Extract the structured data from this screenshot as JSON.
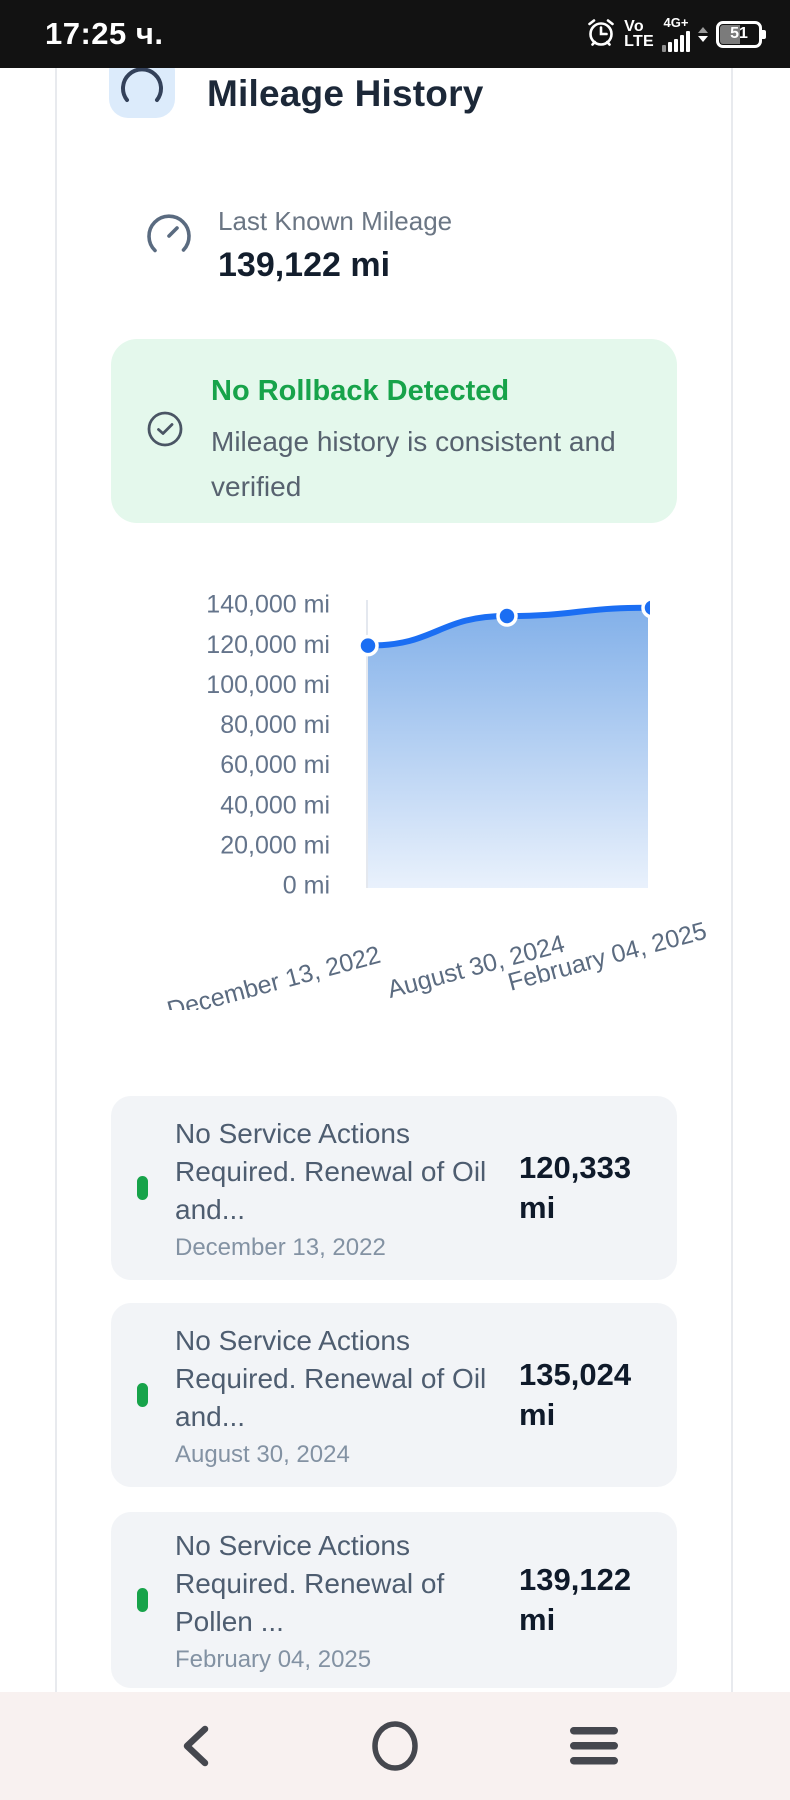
{
  "status_bar": {
    "time": "17:25 ч.",
    "carrier_lines": "Vo\nLTE",
    "network_badge": "4G+",
    "battery_percent": "51"
  },
  "header": {
    "title": "Mileage History"
  },
  "summary": {
    "label": "Last Known Mileage",
    "value": "139,122 mi"
  },
  "alert": {
    "title": "No Rollback Detected",
    "message": "Mileage history is consistent and verified"
  },
  "chart_data": {
    "type": "area",
    "x": [
      "December 13, 2022",
      "August 30, 2024",
      "February 04, 2025"
    ],
    "values": [
      120333,
      135024,
      139122
    ],
    "ylim": [
      0,
      140000
    ],
    "y_tick_step": 20000,
    "y_ticks": [
      "140,000 mi",
      "120,000 mi",
      "100,000 mi",
      "80,000 mi",
      "60,000 mi",
      "40,000 mi",
      "20,000 mi",
      "0 mi"
    ],
    "title": "",
    "xlabel": "",
    "ylabel": "",
    "grid": false,
    "legend": "none",
    "line_color": "#1b6ef3",
    "dot_color": "#1b6ef3",
    "area_top_color": "#82b0e9",
    "area_bottom_color": "#e9f1fc",
    "axis_color": "#e4e8ef",
    "tick_color": "#64748b"
  },
  "records": [
    {
      "title": "No Service Actions Required. Renewal of Oil and...",
      "date": "December 13, 2022",
      "value": "120,333 mi"
    },
    {
      "title": "No Service Actions Required. Renewal of Oil and...",
      "date": "August 30, 2024",
      "value": "135,024 mi"
    },
    {
      "title": "No Service Actions Required. Renewal of Pollen ...",
      "date": "February 04, 2025",
      "value": "139,122 mi"
    }
  ],
  "nav": {
    "back": "back",
    "home": "home",
    "menu": "menu"
  },
  "colors": {
    "status_bar_bg": "#121212",
    "title_text": "#1c2838",
    "alert_bg": "#e4f8ec",
    "alert_title": "#17a34a",
    "card_bg": "#f2f4f7",
    "record_dot": "#17a34a",
    "nav_bg": "#f8f1f0"
  }
}
